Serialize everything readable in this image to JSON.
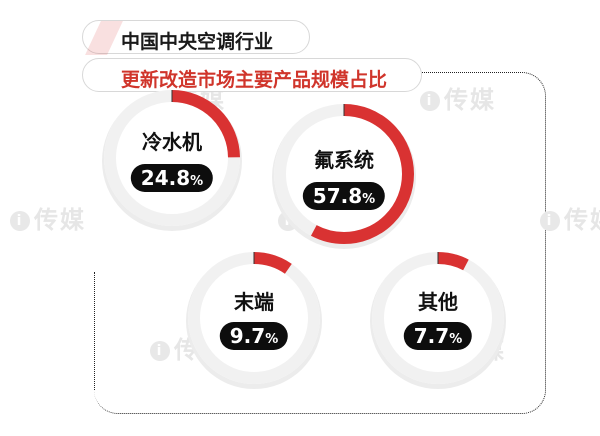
{
  "title": {
    "line1": "中国中央空调行业",
    "line2": "更新改造市场主要产品规模占比"
  },
  "watermark": "传媒",
  "colors": {
    "accent": "#d93232",
    "track": "#f1f1f1",
    "pill": "#0d0d0d"
  },
  "chart_data": {
    "type": "pie",
    "title": "更新改造市场主要产品规模占比",
    "unit": "%",
    "slices": [
      {
        "label": "冷水机",
        "value": 24.8,
        "display_number": "24.8",
        "display_unit": "%"
      },
      {
        "label": "氟系统",
        "value": 57.8,
        "display_number": "57.8",
        "display_unit": "%"
      },
      {
        "label": "末端",
        "value": 9.7,
        "display_number": "9.7",
        "display_unit": "%"
      },
      {
        "label": "其他",
        "value": 7.7,
        "display_number": "7.7",
        "display_unit": "%"
      }
    ]
  }
}
